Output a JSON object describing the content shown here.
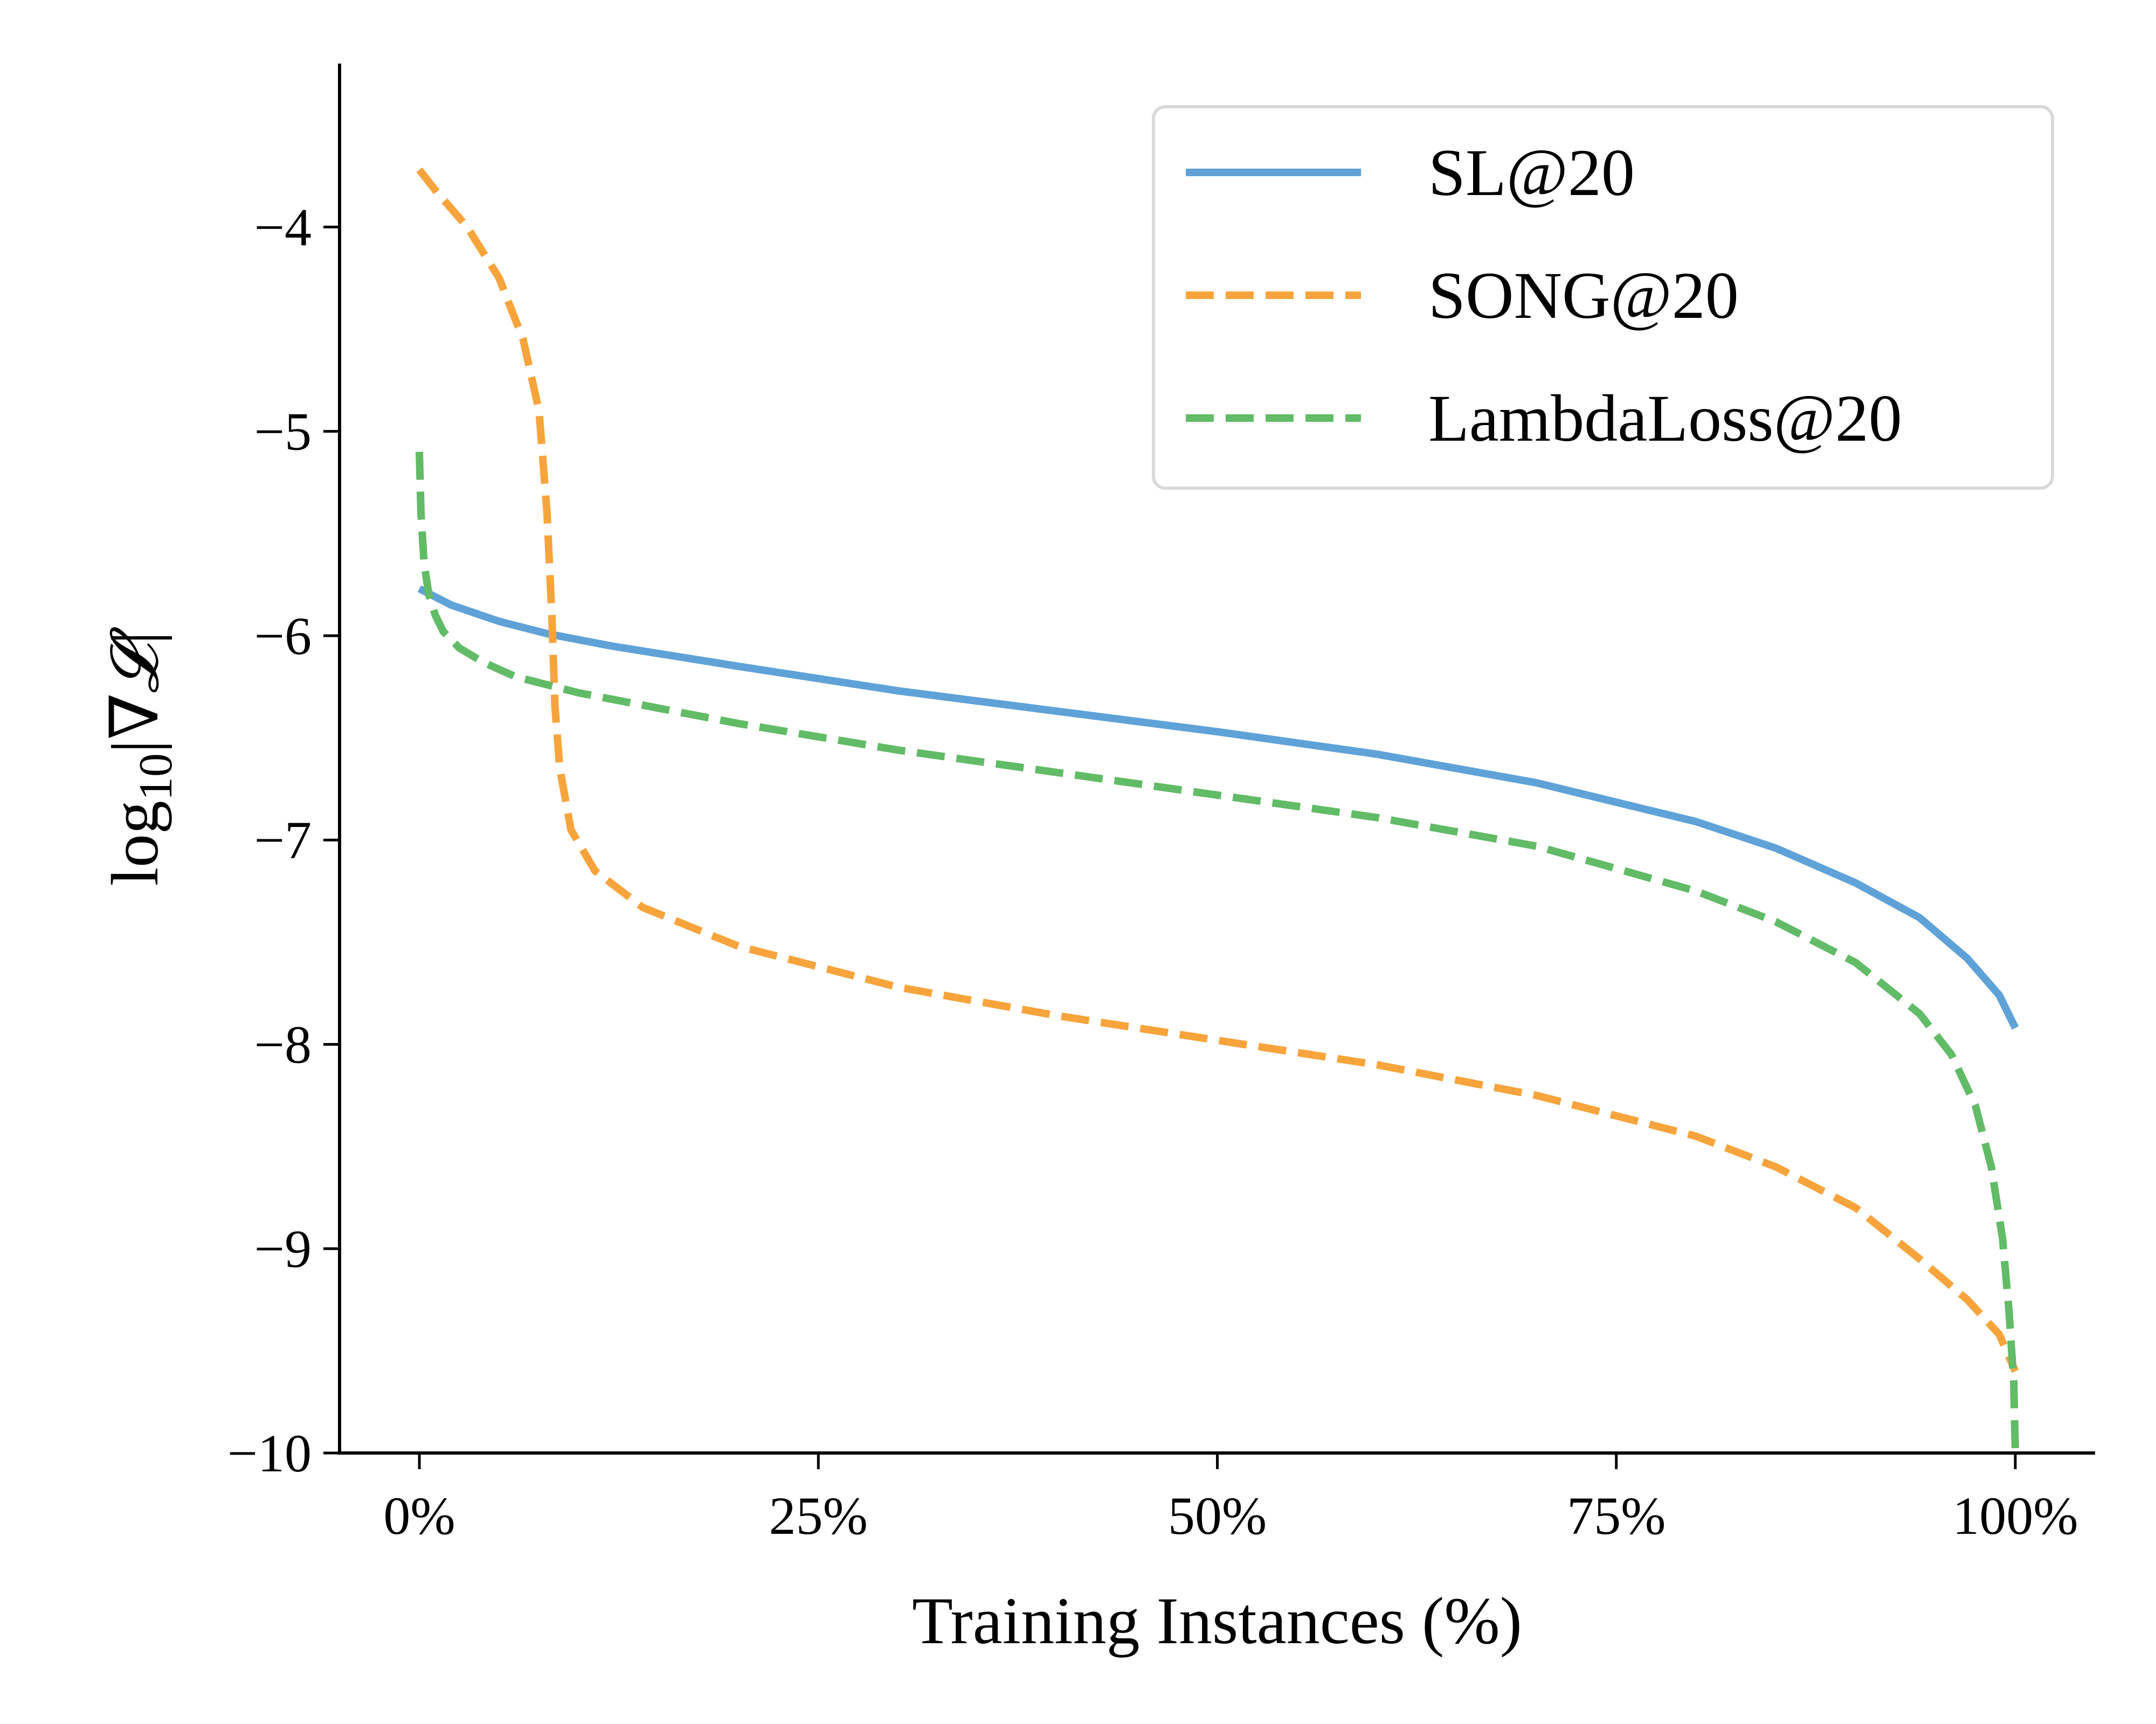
{
  "colors": {
    "sl": "#5fa2d8",
    "song": "#f8a43c",
    "lambda": "#62bb67",
    "axis": "#000000",
    "legend_border": "#d9d9d9"
  },
  "chart_data": {
    "type": "line",
    "xlabel": "Training Instances (%)",
    "ylabel": {
      "base": "log",
      "subscript": "10",
      "body": "|∇",
      "symbol": "𝓛",
      "close": "|"
    },
    "xlim": [
      -5,
      105
    ],
    "ylim": [
      -10,
      -3.2
    ],
    "x_ticks": [
      0,
      25,
      50,
      75,
      100
    ],
    "x_tick_labels": [
      "0%",
      "25%",
      "50%",
      "75%",
      "100%"
    ],
    "y_ticks": [
      -4,
      -5,
      -6,
      -7,
      -8,
      -9,
      -10
    ],
    "y_tick_labels": [
      "−4",
      "−5",
      "−6",
      "−7",
      "−8",
      "−9",
      "−10"
    ],
    "legend_position": "top-right",
    "series": [
      {
        "name": "SL@20",
        "style": "solid",
        "color": "#5fa2d8",
        "x": [
          0,
          2,
          5,
          8,
          12,
          20,
          30,
          40,
          50,
          60,
          70,
          80,
          85,
          90,
          94,
          97,
          99,
          100
        ],
        "y": [
          -5.77,
          -5.85,
          -5.93,
          -5.99,
          -6.05,
          -6.15,
          -6.27,
          -6.37,
          -6.47,
          -6.58,
          -6.72,
          -6.91,
          -7.04,
          -7.21,
          -7.38,
          -7.58,
          -7.76,
          -7.92
        ]
      },
      {
        "name": "SONG@20",
        "style": "dashed",
        "color": "#f8a43c",
        "x": [
          0,
          1,
          3,
          5,
          6.5,
          7.5,
          8,
          8.3,
          8.5,
          8.8,
          9.5,
          11,
          14,
          20,
          30,
          40,
          50,
          60,
          70,
          80,
          85,
          90,
          94,
          97,
          99,
          100
        ],
        "y": [
          -3.72,
          -3.82,
          -4.0,
          -4.25,
          -4.55,
          -4.9,
          -5.4,
          -5.9,
          -6.35,
          -6.65,
          -6.95,
          -7.15,
          -7.33,
          -7.52,
          -7.72,
          -7.86,
          -7.98,
          -8.1,
          -8.25,
          -8.45,
          -8.6,
          -8.8,
          -9.05,
          -9.25,
          -9.42,
          -9.6
        ]
      },
      {
        "name": "LambdaLoss@20",
        "style": "dashed",
        "color": "#62bb67",
        "x": [
          0,
          0.1,
          0.3,
          0.6,
          1,
          1.5,
          2.5,
          4,
          6,
          10,
          20,
          30,
          40,
          50,
          60,
          70,
          80,
          85,
          90,
          94,
          96,
          97.5,
          98.5,
          99.2,
          99.6,
          99.9,
          100
        ],
        "y": [
          -5.1,
          -5.4,
          -5.65,
          -5.8,
          -5.9,
          -5.98,
          -6.06,
          -6.13,
          -6.2,
          -6.28,
          -6.43,
          -6.56,
          -6.67,
          -6.78,
          -6.89,
          -7.03,
          -7.25,
          -7.4,
          -7.6,
          -7.85,
          -8.05,
          -8.3,
          -8.6,
          -8.95,
          -9.3,
          -9.65,
          -10.0
        ]
      }
    ]
  }
}
